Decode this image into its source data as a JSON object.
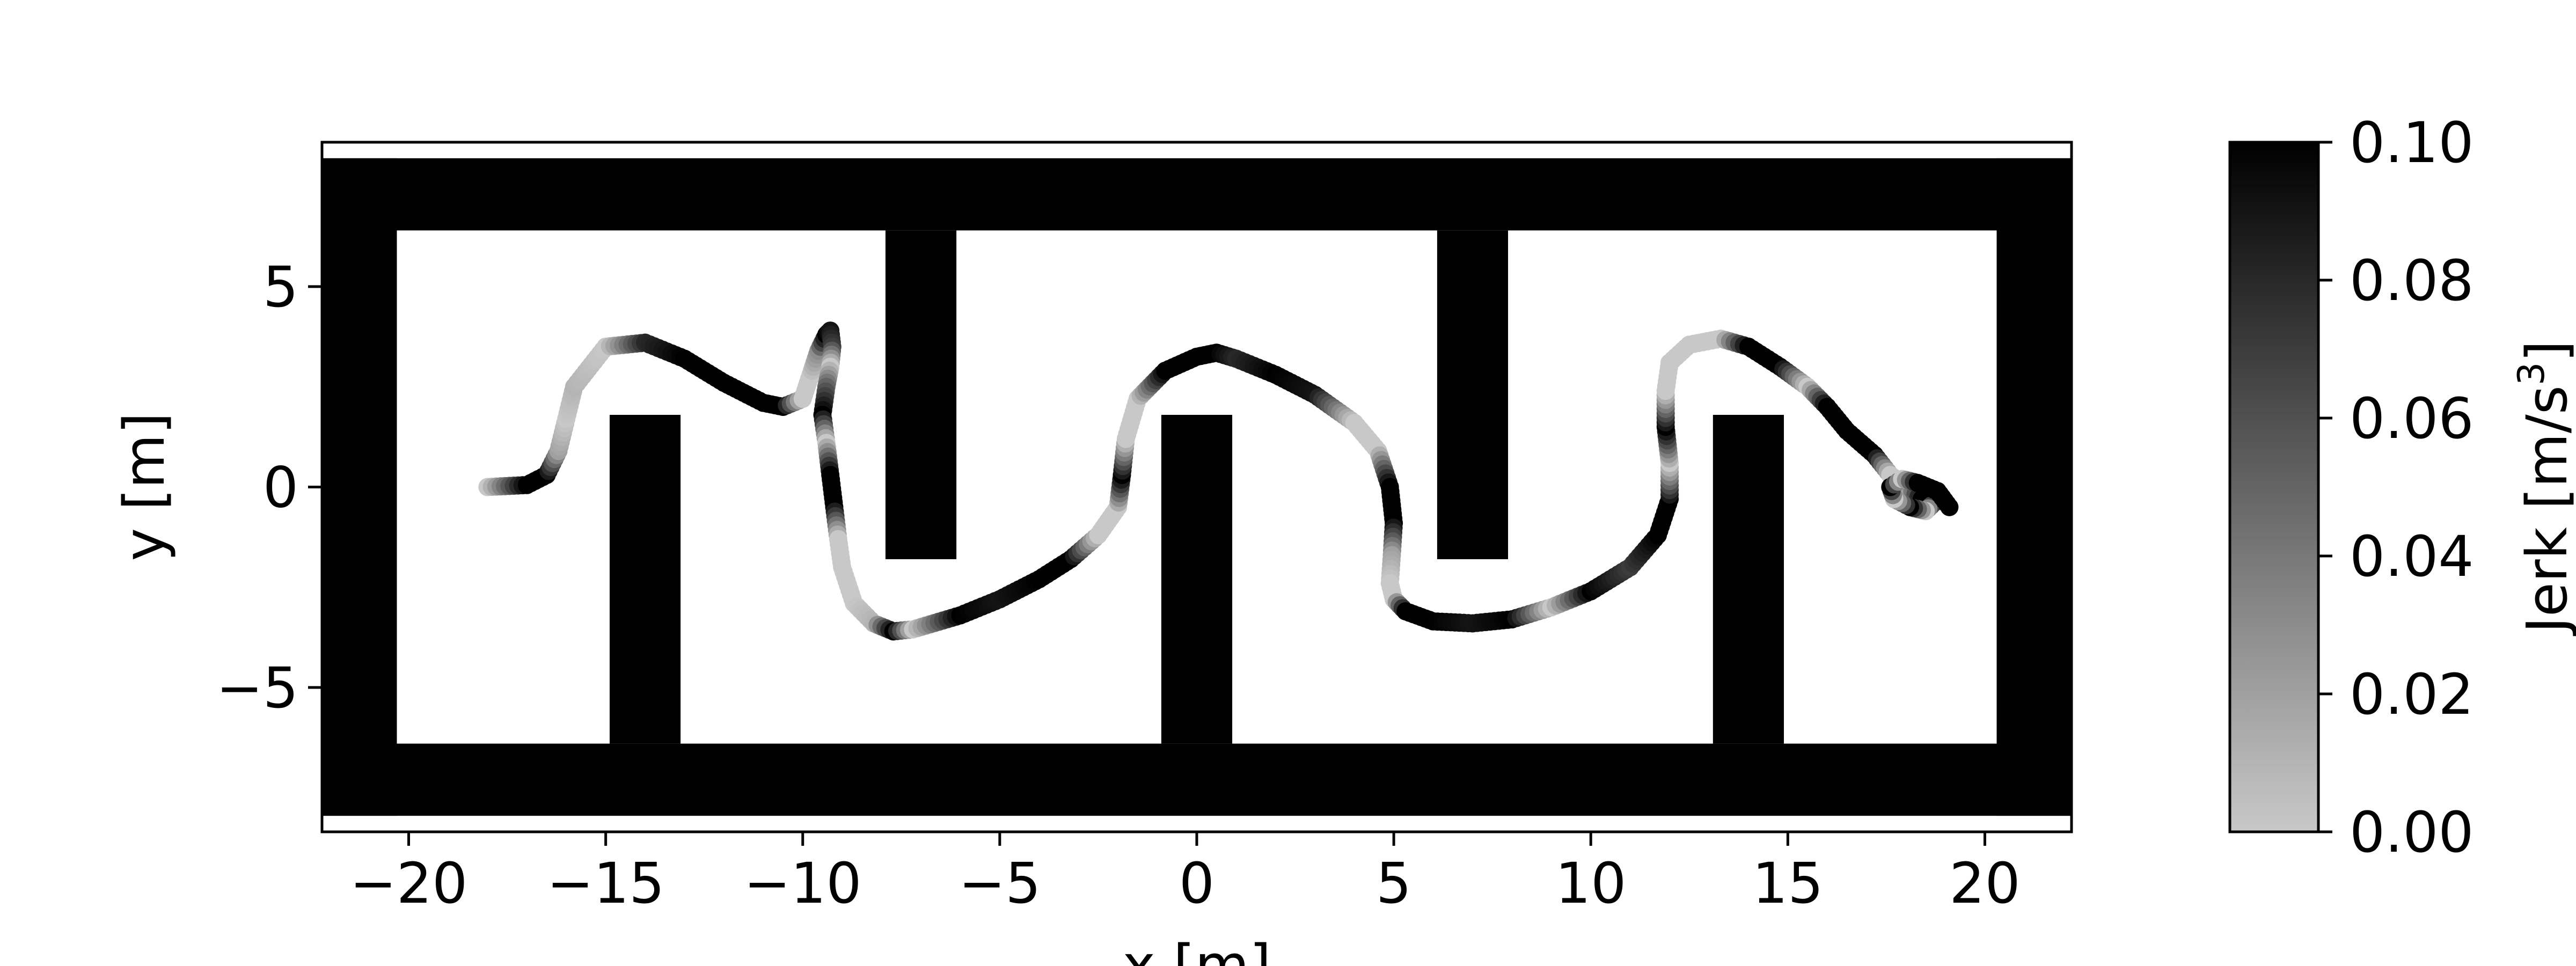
{
  "chart_data": {
    "type": "scatter",
    "title": "",
    "xlabel": "x [m]",
    "ylabel": "y [m]",
    "xlim": [
      -22.2,
      22.2
    ],
    "ylim": [
      -8.6,
      8.6
    ],
    "xticks": [
      -20,
      -15,
      -10,
      -5,
      0,
      5,
      10,
      15,
      20
    ],
    "xtick_labels": [
      "−20",
      "−15",
      "−10",
      "−5",
      "0",
      "5",
      "10",
      "15",
      "20"
    ],
    "yticks": [
      -5,
      0,
      5
    ],
    "ytick_labels": [
      "−5",
      "0",
      "5"
    ],
    "grid": false,
    "obstacle_color": "#000000",
    "walls": [
      {
        "x": [
          -22.2,
          22.2
        ],
        "y": [
          6.4,
          8.2
        ]
      },
      {
        "x": [
          -22.2,
          22.2
        ],
        "y": [
          -8.2,
          -6.4
        ]
      },
      {
        "x": [
          -22.2,
          -20.3
        ],
        "y": [
          -8.2,
          8.2
        ]
      },
      {
        "x": [
          20.3,
          22.2
        ],
        "y": [
          -8.2,
          8.2
        ]
      },
      {
        "x": [
          -14.9,
          -13.1
        ],
        "y": [
          -6.4,
          1.8
        ]
      },
      {
        "x": [
          -0.9,
          0.9
        ],
        "y": [
          -6.4,
          1.8
        ]
      },
      {
        "x": [
          13.1,
          14.9
        ],
        "y": [
          -6.4,
          1.8
        ]
      },
      {
        "x": [
          -7.9,
          -6.1
        ],
        "y": [
          -1.8,
          6.4
        ]
      },
      {
        "x": [
          6.1,
          7.9
        ],
        "y": [
          -1.8,
          6.4
        ]
      }
    ],
    "colorbar": {
      "label": "Jerk [m/s³]",
      "label_main": "Jerk [m/s",
      "label_sup": "3",
      "label_end": "]",
      "min": 0.0,
      "max": 0.1,
      "ticks": [
        0.0,
        0.02,
        0.04,
        0.06,
        0.08,
        0.1
      ],
      "tick_labels": [
        "0.00",
        "0.02",
        "0.04",
        "0.06",
        "0.08",
        "0.10"
      ],
      "cmap": [
        "#c8c8c8",
        "#000000"
      ]
    },
    "trajectory": {
      "x": [
        -18.0,
        -17.0,
        -16.5,
        -16.2,
        -16.0,
        -15.8,
        -15.0,
        -14.0,
        -13.0,
        -12.0,
        -11.0,
        -10.5,
        -10.0,
        -9.8,
        -9.6,
        -9.4,
        -9.3,
        -9.25,
        -9.3,
        -9.4,
        -9.5,
        -9.4,
        -9.3,
        -9.2,
        -9.1,
        -9.0,
        -8.7,
        -8.2,
        -7.7,
        -7.2,
        -6.0,
        -5.0,
        -4.0,
        -3.2,
        -2.5,
        -2.0,
        -1.9,
        -1.8,
        -1.5,
        -0.8,
        0.0,
        0.5,
        1.0,
        2.0,
        3.0,
        4.0,
        4.6,
        4.9,
        5.0,
        4.95,
        4.9,
        5.0,
        5.3,
        6.0,
        7.0,
        8.0,
        9.0,
        10.0,
        11.0,
        11.7,
        12.0,
        12.0,
        11.9,
        11.9,
        12.0,
        12.5,
        13.3,
        14.0,
        14.8,
        15.5,
        16.0,
        16.5,
        17.2,
        17.6,
        18.0,
        18.4,
        18.7,
        18.5,
        18.1,
        17.7,
        17.6,
        17.9,
        18.3,
        18.8,
        19.1
      ],
      "y": [
        0.0,
        0.05,
        0.3,
        0.9,
        1.7,
        2.5,
        3.5,
        3.6,
        3.2,
        2.6,
        2.1,
        2.0,
        2.2,
        2.8,
        3.4,
        3.8,
        3.9,
        3.5,
        3.0,
        2.5,
        1.8,
        1.1,
        0.3,
        -0.5,
        -1.3,
        -2.0,
        -2.9,
        -3.4,
        -3.6,
        -3.55,
        -3.2,
        -2.8,
        -2.3,
        -1.8,
        -1.2,
        -0.5,
        0.3,
        1.2,
        2.2,
        2.9,
        3.25,
        3.35,
        3.2,
        2.8,
        2.3,
        1.6,
        0.9,
        0.0,
        -0.9,
        -1.7,
        -2.4,
        -2.8,
        -3.1,
        -3.35,
        -3.4,
        -3.3,
        -3.0,
        -2.6,
        -2.0,
        -1.2,
        -0.3,
        0.6,
        1.5,
        2.4,
        3.1,
        3.55,
        3.7,
        3.5,
        3.0,
        2.5,
        2.0,
        1.4,
        0.8,
        0.3,
        0.0,
        -0.3,
        -0.4,
        -0.6,
        -0.5,
        -0.3,
        0.0,
        0.2,
        0.1,
        -0.1,
        -0.5
      ],
      "jerk": [
        0.0,
        0.1,
        0.1,
        0.02,
        0.0,
        0.01,
        0.0,
        0.08,
        0.1,
        0.1,
        0.1,
        0.1,
        0.0,
        0.0,
        0.03,
        0.1,
        0.09,
        0.07,
        0.0,
        0.05,
        0.1,
        0.0,
        0.1,
        0.1,
        0.0,
        0.0,
        0.0,
        0.01,
        0.1,
        0.0,
        0.1,
        0.09,
        0.1,
        0.1,
        0.0,
        0.0,
        0.1,
        0.0,
        0.0,
        0.1,
        0.1,
        0.1,
        0.08,
        0.1,
        0.09,
        0.0,
        0.0,
        0.1,
        0.1,
        0.02,
        0.0,
        0.0,
        0.1,
        0.1,
        0.09,
        0.1,
        0.0,
        0.1,
        0.07,
        0.1,
        0.1,
        0.0,
        0.1,
        0.0,
        0.0,
        0.0,
        0.0,
        0.1,
        0.1,
        0.0,
        0.1,
        0.1,
        0.1,
        0.0,
        0.0,
        0.1,
        0.1,
        0.0,
        0.1,
        0.0,
        0.1,
        0.0,
        0.1,
        0.1,
        0.1
      ]
    }
  }
}
